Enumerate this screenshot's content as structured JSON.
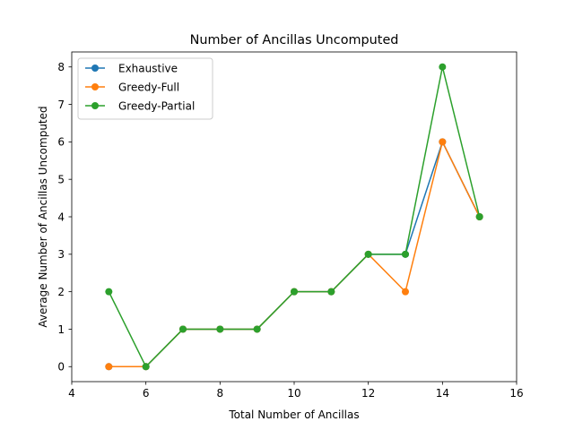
{
  "chart_data": {
    "type": "line",
    "title": "Number of Ancillas Uncomputed",
    "xlabel": "Total Number of Ancillas",
    "ylabel": "Average Number of Ancillas Uncomputed",
    "xlim": [
      4,
      16
    ],
    "ylim": [
      -0.4,
      8.4
    ],
    "xticks": [
      4,
      6,
      8,
      10,
      12,
      14,
      16
    ],
    "yticks": [
      0,
      1,
      2,
      3,
      4,
      5,
      6,
      7,
      8
    ],
    "grid": false,
    "legend_position": "top-left",
    "x": [
      5,
      6,
      7,
      8,
      9,
      10,
      11,
      12,
      13,
      14,
      15
    ],
    "series": [
      {
        "name": "Exhaustive",
        "color": "#1f77b4",
        "values": [
          0,
          0,
          1,
          1,
          1,
          2,
          2,
          3,
          3,
          6,
          4
        ]
      },
      {
        "name": "Greedy-Full",
        "color": "#ff7f0e",
        "values": [
          0,
          0,
          1,
          1,
          1,
          2,
          2,
          3,
          2,
          6,
          4
        ]
      },
      {
        "name": "Greedy-Partial",
        "color": "#2ca02c",
        "values": [
          2,
          0,
          1,
          1,
          1,
          2,
          2,
          3,
          3,
          8,
          4
        ]
      }
    ]
  }
}
